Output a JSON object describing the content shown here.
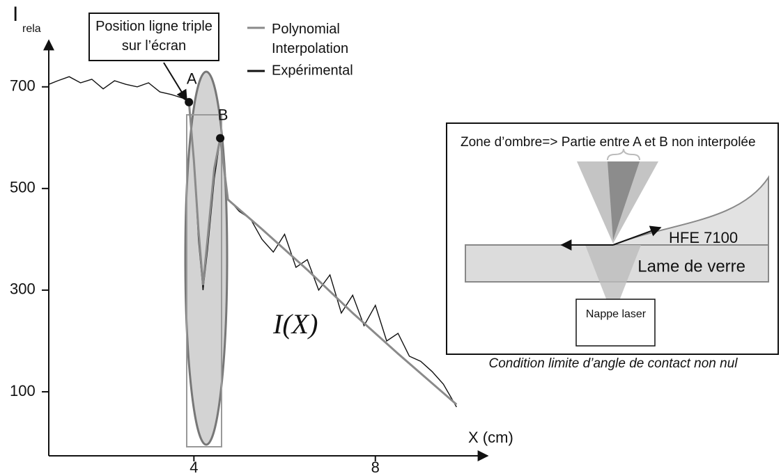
{
  "chart_data": {
    "type": "line",
    "y_label": "I",
    "y_label_sub": "rela",
    "x_label": "X (cm)",
    "xlim": [
      0.8,
      10.4
    ],
    "ylim": [
      -26,
      786
    ],
    "xticks": [
      4,
      8
    ],
    "yticks": [
      100,
      300,
      500,
      700
    ],
    "series": [
      {
        "name": "Polynomial Interpolation",
        "color": "#8a8a8a",
        "x": [
          3.89,
          4.0,
          4.1,
          4.2,
          4.3,
          4.45,
          4.58,
          4.75,
          5.5,
          6.5,
          7.5,
          8.5,
          9.79
        ],
        "values": [
          670,
          555,
          420,
          310,
          400,
          540,
          599,
          478,
          420,
          340,
          255,
          175,
          75
        ]
      },
      {
        "name": "Expérimental",
        "color": "#111111",
        "x": [
          0.8,
          1.0,
          1.25,
          1.5,
          1.75,
          2.0,
          2.25,
          2.5,
          2.75,
          3.0,
          3.25,
          3.5,
          3.75,
          3.89,
          4.0,
          4.1,
          4.2,
          4.3,
          4.45,
          4.58,
          4.75,
          5.0,
          5.25,
          5.5,
          5.75,
          6.0,
          6.25,
          6.5,
          6.75,
          7.0,
          7.25,
          7.5,
          7.75,
          8.0,
          8.25,
          8.5,
          8.75,
          9.0,
          9.25,
          9.5,
          9.79
        ],
        "values": [
          705,
          712,
          720,
          708,
          715,
          696,
          712,
          705,
          700,
          708,
          690,
          685,
          678,
          670,
          560,
          400,
          300,
          380,
          520,
          599,
          480,
          455,
          440,
          400,
          375,
          410,
          345,
          360,
          300,
          330,
          255,
          290,
          230,
          270,
          200,
          215,
          170,
          160,
          140,
          115,
          70
        ]
      }
    ],
    "points": [
      {
        "label": "A",
        "x": 3.89,
        "y": 670
      },
      {
        "label": "B",
        "x": 4.58,
        "y": 599
      }
    ],
    "annotations": {
      "callout": "Position ligne triple sur l’écran",
      "curve_label": "I(X)"
    },
    "inset": {
      "shadow": "Zone d’ombre=> Partie entre A et B non interpolée",
      "liquid": "HFE 7100",
      "plate": "Lame de verre",
      "laser": "Nappe laser",
      "caption": "Condition limite d’angle de contact non nul"
    }
  }
}
